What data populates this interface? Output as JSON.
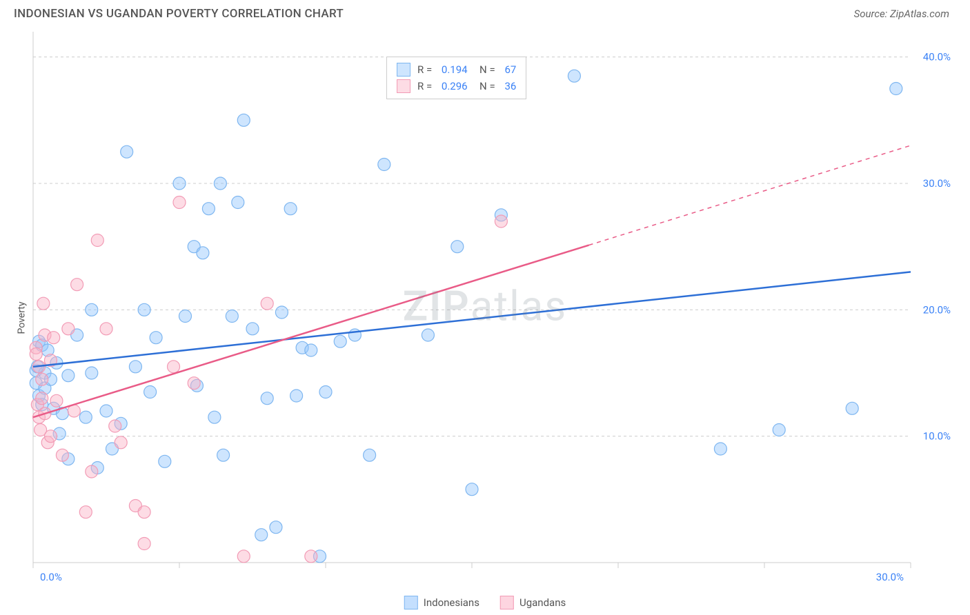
{
  "header": {
    "title": "INDONESIAN VS UGANDAN POVERTY CORRELATION CHART",
    "source": "Source: ZipAtlas.com"
  },
  "watermark": {
    "zip": "ZIP",
    "atlas": "atlas"
  },
  "chart": {
    "type": "scatter",
    "background_color": "#ffffff",
    "grid_color": "#cccccc",
    "axis_color": "#cccccc",
    "tick_label_color": "#3b82f6",
    "axis_text_color": "#555555",
    "xlim": [
      0,
      30
    ],
    "ylim": [
      0,
      42
    ],
    "x_ticks": [
      0,
      5,
      10,
      15,
      20,
      25,
      30
    ],
    "x_tick_labels": [
      "0.0%",
      "",
      "",
      "",
      "",
      "",
      "30.0%"
    ],
    "y_ticks": [
      10,
      20,
      30,
      40
    ],
    "y_tick_labels": [
      "10.0%",
      "20.0%",
      "30.0%",
      "40.0%"
    ],
    "y_label": "Poverty",
    "marker_radius": 9,
    "marker_border_width": 1.2,
    "line_width": 2.5,
    "series": [
      {
        "name": "Indonesians",
        "fill_color": "rgba(147,197,253,0.45)",
        "stroke_color": "#7eb6f0",
        "line_color": "#2d6fd6",
        "r_value": "0.194",
        "n_value": "67",
        "trend": {
          "x1": 0,
          "y1": 15.5,
          "x2": 30,
          "y2": 23,
          "dash_from_x": 30
        },
        "points": [
          [
            0.1,
            15.2
          ],
          [
            0.1,
            14.2
          ],
          [
            0.2,
            13.2
          ],
          [
            0.2,
            17.5
          ],
          [
            0.3,
            12.5
          ],
          [
            0.3,
            17.2
          ],
          [
            0.4,
            15.0
          ],
          [
            0.4,
            13.8
          ],
          [
            0.5,
            16.8
          ],
          [
            0.6,
            14.5
          ],
          [
            0.7,
            12.2
          ],
          [
            0.8,
            15.8
          ],
          [
            0.9,
            10.2
          ],
          [
            1.0,
            11.8
          ],
          [
            1.2,
            8.2
          ],
          [
            1.2,
            14.8
          ],
          [
            1.5,
            18.0
          ],
          [
            1.8,
            11.5
          ],
          [
            2.0,
            15.0
          ],
          [
            2.0,
            20.0
          ],
          [
            2.2,
            7.5
          ],
          [
            2.5,
            12.0
          ],
          [
            2.7,
            9.0
          ],
          [
            3.0,
            11.0
          ],
          [
            3.2,
            32.5
          ],
          [
            3.5,
            15.5
          ],
          [
            3.8,
            20.0
          ],
          [
            4.0,
            13.5
          ],
          [
            4.2,
            17.8
          ],
          [
            4.5,
            8.0
          ],
          [
            5.0,
            30.0
          ],
          [
            5.2,
            19.5
          ],
          [
            5.5,
            25.0
          ],
          [
            5.6,
            14.0
          ],
          [
            5.8,
            24.5
          ],
          [
            6.0,
            28.0
          ],
          [
            6.2,
            11.5
          ],
          [
            6.4,
            30.0
          ],
          [
            6.5,
            8.5
          ],
          [
            6.8,
            19.5
          ],
          [
            7.0,
            28.5
          ],
          [
            7.2,
            35.0
          ],
          [
            7.5,
            18.5
          ],
          [
            7.8,
            2.2
          ],
          [
            8.0,
            13.0
          ],
          [
            8.3,
            2.8
          ],
          [
            8.5,
            19.8
          ],
          [
            8.8,
            28.0
          ],
          [
            9.0,
            13.2
          ],
          [
            9.2,
            17.0
          ],
          [
            9.5,
            16.8
          ],
          [
            9.8,
            0.5
          ],
          [
            10.0,
            13.5
          ],
          [
            10.5,
            17.5
          ],
          [
            11.0,
            18.0
          ],
          [
            11.5,
            8.5
          ],
          [
            12.0,
            31.5
          ],
          [
            13.5,
            18.0
          ],
          [
            14.5,
            25.0
          ],
          [
            15.0,
            5.8
          ],
          [
            16.0,
            27.5
          ],
          [
            18.5,
            38.5
          ],
          [
            23.5,
            9.0
          ],
          [
            25.5,
            10.5
          ],
          [
            28.0,
            12.2
          ],
          [
            29.5,
            37.5
          ],
          [
            0.15,
            15.5
          ]
        ]
      },
      {
        "name": "Ugandans",
        "fill_color": "rgba(251,178,198,0.45)",
        "stroke_color": "#f29bb5",
        "line_color": "#e95b87",
        "r_value": "0.296",
        "n_value": "36",
        "trend": {
          "x1": 0,
          "y1": 11.5,
          "x2": 30,
          "y2": 33,
          "dash_from_x": 19
        },
        "points": [
          [
            0.1,
            17.0
          ],
          [
            0.1,
            16.5
          ],
          [
            0.15,
            12.5
          ],
          [
            0.2,
            11.5
          ],
          [
            0.2,
            15.5
          ],
          [
            0.25,
            10.5
          ],
          [
            0.3,
            14.5
          ],
          [
            0.3,
            13.0
          ],
          [
            0.35,
            20.5
          ],
          [
            0.4,
            11.8
          ],
          [
            0.4,
            18.0
          ],
          [
            0.5,
            9.5
          ],
          [
            0.6,
            10.0
          ],
          [
            0.6,
            16.0
          ],
          [
            0.7,
            17.8
          ],
          [
            0.8,
            12.8
          ],
          [
            1.0,
            8.5
          ],
          [
            1.2,
            18.5
          ],
          [
            1.4,
            12.0
          ],
          [
            1.5,
            22.0
          ],
          [
            1.8,
            4.0
          ],
          [
            2.0,
            7.2
          ],
          [
            2.2,
            25.5
          ],
          [
            2.5,
            18.5
          ],
          [
            2.8,
            10.8
          ],
          [
            3.0,
            9.5
          ],
          [
            3.5,
            4.5
          ],
          [
            3.8,
            4.0
          ],
          [
            3.8,
            1.5
          ],
          [
            4.8,
            15.5
          ],
          [
            5.0,
            28.5
          ],
          [
            5.5,
            14.2
          ],
          [
            7.2,
            0.5
          ],
          [
            8.0,
            20.5
          ],
          [
            9.5,
            0.5
          ],
          [
            16.0,
            27.0
          ]
        ]
      }
    ],
    "legend_bottom": [
      {
        "label": "Indonesians",
        "fill": "rgba(147,197,253,0.55)",
        "stroke": "#7eb6f0"
      },
      {
        "label": "Ugandans",
        "fill": "rgba(251,178,198,0.55)",
        "stroke": "#f29bb5"
      }
    ]
  }
}
